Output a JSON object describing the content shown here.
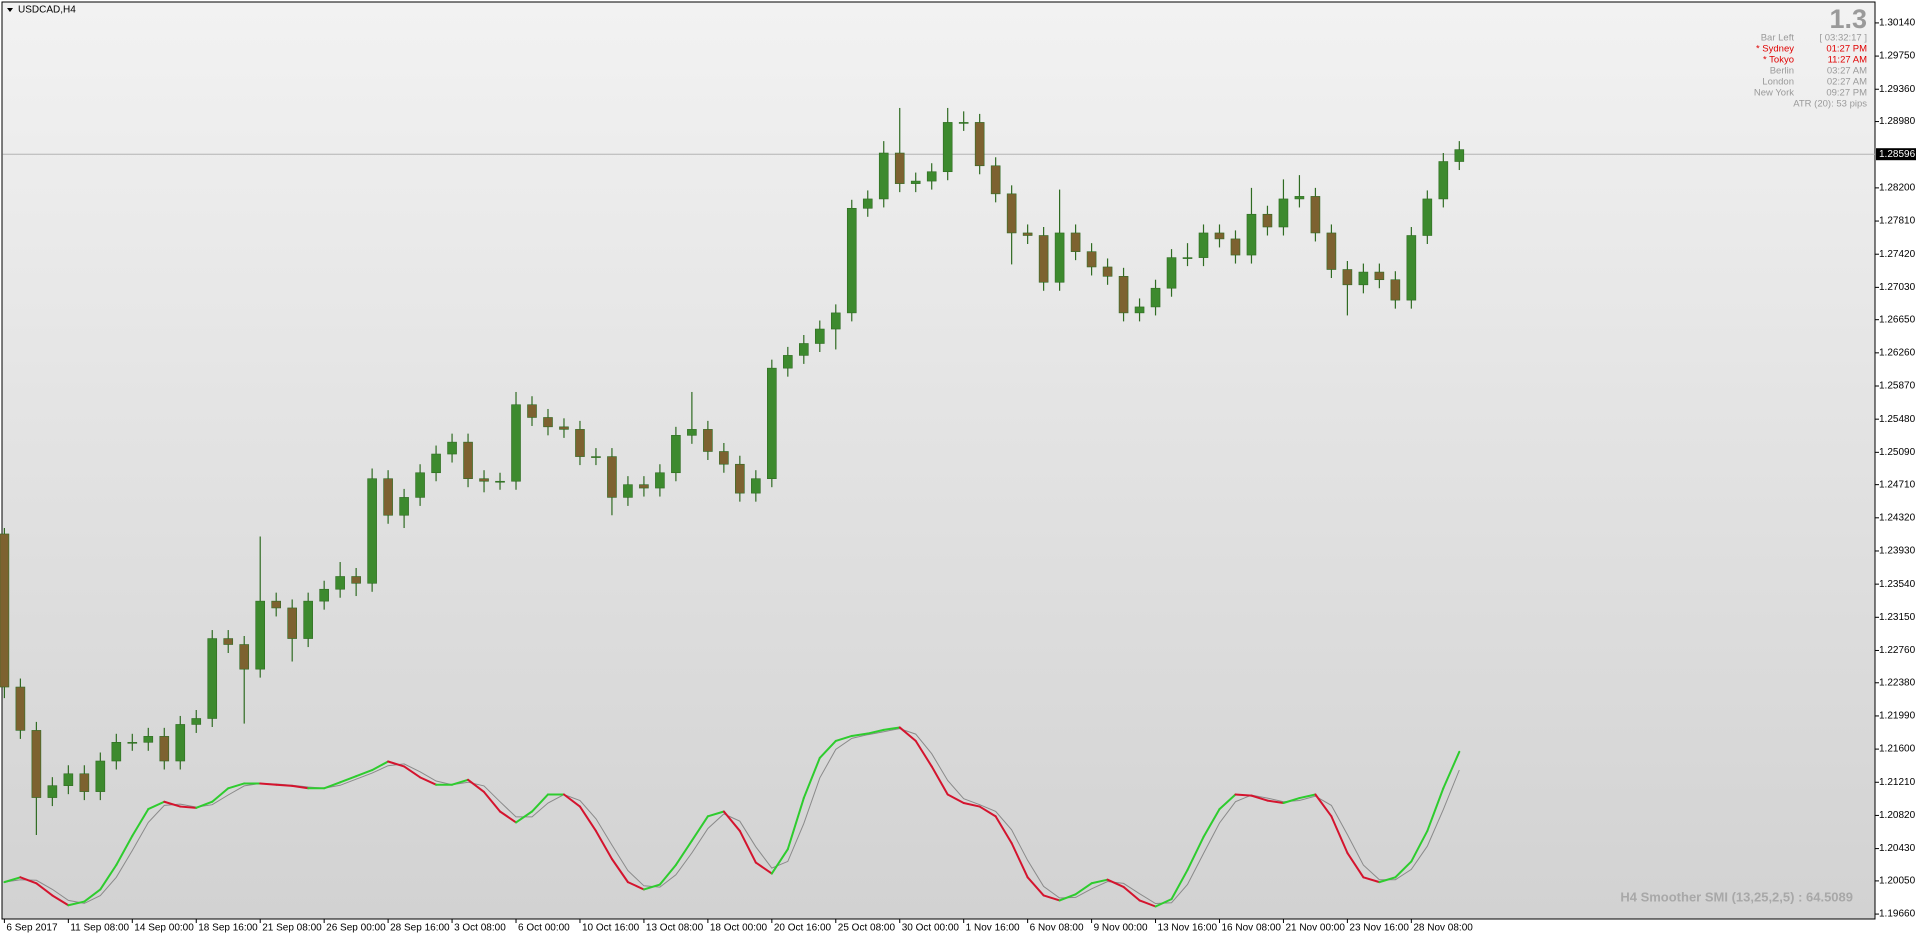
{
  "chart_data": {
    "type": "candlestick",
    "title": "USDCAD,H4",
    "x": [
      0,
      4,
      8,
      12,
      16,
      20,
      24,
      28,
      32,
      36,
      40,
      44,
      48,
      52,
      56,
      60,
      64,
      68,
      72,
      76,
      80,
      84,
      88,
      92,
      96,
      100,
      104,
      108,
      112,
      116,
      120,
      124,
      128,
      132,
      136,
      140,
      144,
      148,
      152,
      156,
      160,
      164,
      168,
      172,
      176,
      180,
      184,
      188,
      192,
      196,
      200,
      204,
      208,
      212,
      216,
      220,
      224,
      228,
      232,
      236,
      240,
      244,
      248,
      252,
      256,
      260,
      264,
      268,
      272,
      276,
      280,
      284,
      288,
      292,
      296,
      300,
      304,
      308,
      312,
      316,
      320,
      324,
      328,
      332,
      336,
      340,
      344,
      348,
      352,
      356,
      360,
      364
    ],
    "open": [
      1.2413,
      1.2233,
      1.2182,
      1.2103,
      1.2117,
      1.2131,
      1.211,
      1.2146,
      1.2168,
      1.2168,
      1.2175,
      1.2146,
      1.2189,
      1.2196,
      1.229,
      1.2283,
      1.2254,
      1.2334,
      1.2326,
      1.229,
      1.2334,
      1.2348,
      1.2363,
      1.2355,
      1.2478,
      1.2435,
      1.2456,
      1.2485,
      1.2507,
      1.2521,
      1.2478,
      1.2475,
      1.2475,
      1.2565,
      1.255,
      1.2539,
      1.2536,
      1.2504,
      1.2504,
      1.2456,
      1.2471,
      1.2467,
      1.2485,
      1.2529,
      1.2536,
      1.251,
      1.2495,
      1.2461,
      1.2478,
      1.2608,
      1.2623,
      1.2637,
      1.2654,
      1.2673,
      1.2796,
      1.2807,
      1.2861,
      1.2825,
      1.2828,
      1.2839,
      1.2897,
      1.2897,
      1.2846,
      1.2813,
      1.2767,
      1.2764,
      1.2709,
      1.2767,
      1.2745,
      1.2727,
      1.2716,
      1.2673,
      1.268,
      1.2702,
      1.2738,
      1.2738,
      1.2767,
      1.276,
      1.2741,
      1.2789,
      1.2774,
      1.2807,
      1.281,
      1.2767,
      1.2724,
      1.2706,
      1.2721,
      1.2712,
      1.2688,
      1.2764,
      1.2807,
      1.2851
    ],
    "high": [
      1.242,
      1.2243,
      1.2192,
      1.2127,
      1.2141,
      1.2141,
      1.2156,
      1.2178,
      1.2178,
      1.2185,
      1.2185,
      1.2199,
      1.2206,
      1.23,
      1.23,
      1.2293,
      1.241,
      1.2344,
      1.2336,
      1.2344,
      1.2358,
      1.238,
      1.2373,
      1.249,
      1.2488,
      1.2466,
      1.2495,
      1.2517,
      1.2531,
      1.2531,
      1.2488,
      1.2485,
      1.258,
      1.2575,
      1.256,
      1.2549,
      1.2546,
      1.2514,
      1.2514,
      1.2481,
      1.2481,
      1.2495,
      1.2539,
      1.258,
      1.2546,
      1.252,
      1.2505,
      1.2488,
      1.2618,
      1.2633,
      1.2647,
      1.2664,
      1.2683,
      1.2806,
      1.2817,
      1.2875,
      1.2914,
      1.2838,
      1.2849,
      1.2914,
      1.291,
      1.2907,
      1.2856,
      1.2823,
      1.2777,
      1.2774,
      1.2818,
      1.2777,
      1.2755,
      1.2737,
      1.2726,
      1.269,
      1.2712,
      1.2748,
      1.2755,
      1.2777,
      1.2777,
      1.277,
      1.282,
      1.2799,
      1.283,
      1.2835,
      1.282,
      1.2777,
      1.2734,
      1.2731,
      1.2731,
      1.2722,
      1.2774,
      1.2817,
      1.2861,
      1.2875
    ],
    "low": [
      1.222,
      1.2172,
      1.2059,
      1.2093,
      1.2107,
      1.21,
      1.21,
      1.2136,
      1.2158,
      1.2158,
      1.2136,
      1.2136,
      1.2179,
      1.2186,
      1.2273,
      1.219,
      1.2244,
      1.2316,
      1.2263,
      1.228,
      1.2324,
      1.2338,
      1.234,
      1.2345,
      1.2425,
      1.242,
      1.2446,
      1.2475,
      1.2497,
      1.2468,
      1.2462,
      1.2465,
      1.2465,
      1.254,
      1.2529,
      1.2526,
      1.2494,
      1.2494,
      1.2435,
      1.2446,
      1.2457,
      1.2457,
      1.2475,
      1.2519,
      1.25,
      1.2485,
      1.2451,
      1.2451,
      1.2468,
      1.2598,
      1.2613,
      1.2627,
      1.263,
      1.2663,
      1.2786,
      1.2797,
      1.2815,
      1.2815,
      1.2818,
      1.2829,
      1.2887,
      1.2836,
      1.2803,
      1.273,
      1.2754,
      1.2699,
      1.2699,
      1.2735,
      1.2717,
      1.2706,
      1.2663,
      1.2663,
      1.267,
      1.2692,
      1.2728,
      1.2728,
      1.275,
      1.2731,
      1.2731,
      1.2764,
      1.2764,
      1.2797,
      1.2757,
      1.2714,
      1.267,
      1.2696,
      1.2702,
      1.2678,
      1.2678,
      1.2754,
      1.2797,
      1.2841
    ],
    "close": [
      1.2233,
      1.2182,
      1.2103,
      1.2117,
      1.2131,
      1.211,
      1.2146,
      1.2168,
      1.2168,
      1.2175,
      1.2146,
      1.2189,
      1.2196,
      1.229,
      1.2283,
      1.2254,
      1.2334,
      1.2326,
      1.229,
      1.2334,
      1.2348,
      1.2363,
      1.2355,
      1.2478,
      1.2435,
      1.2456,
      1.2485,
      1.2507,
      1.2521,
      1.2478,
      1.2475,
      1.2475,
      1.2565,
      1.255,
      1.2539,
      1.2536,
      1.2504,
      1.2504,
      1.2456,
      1.2471,
      1.2467,
      1.2485,
      1.2529,
      1.2536,
      1.251,
      1.2495,
      1.2461,
      1.2478,
      1.2608,
      1.2623,
      1.2637,
      1.2654,
      1.2673,
      1.2796,
      1.2807,
      1.2861,
      1.2825,
      1.2828,
      1.2839,
      1.2897,
      1.2897,
      1.2846,
      1.2813,
      1.2767,
      1.2764,
      1.2709,
      1.2767,
      1.2745,
      1.2727,
      1.2716,
      1.2673,
      1.268,
      1.2702,
      1.2738,
      1.2738,
      1.2767,
      1.276,
      1.2741,
      1.2789,
      1.2774,
      1.2807,
      1.281,
      1.2767,
      1.2724,
      1.2706,
      1.2721,
      1.2712,
      1.2688,
      1.2764,
      1.2807,
      1.2851,
      1.2865
    ],
    "bull_color": "#3d8a2e",
    "bear_color": "#7d6230",
    "wick_color": "#2f6b22",
    "xlim": [
      -0.5,
      468
    ],
    "xticks": [
      {
        "value": 0,
        "label": "6 Sep 2017"
      },
      {
        "value": 16,
        "label": "11 Sep 08:00"
      },
      {
        "value": 32,
        "label": "14 Sep 00:00"
      },
      {
        "value": 48,
        "label": "18 Sep 16:00"
      },
      {
        "value": 64,
        "label": "21 Sep 08:00"
      },
      {
        "value": 80,
        "label": "26 Sep 00:00"
      },
      {
        "value": 96,
        "label": "28 Sep 16:00"
      },
      {
        "value": 112,
        "label": "3 Oct 08:00"
      },
      {
        "value": 128,
        "label": "6 Oct 00:00"
      },
      {
        "value": 144,
        "label": "10 Oct 16:00"
      },
      {
        "value": 160,
        "label": "13 Oct 08:00"
      },
      {
        "value": 176,
        "label": "18 Oct 00:00"
      },
      {
        "value": 192,
        "label": "20 Oct 16:00"
      },
      {
        "value": 208,
        "label": "25 Oct 08:00"
      },
      {
        "value": 224,
        "label": "30 Oct 00:00"
      },
      {
        "value": 240,
        "label": "1 Nov 16:00"
      },
      {
        "value": 256,
        "label": "6 Nov 08:00"
      },
      {
        "value": 272,
        "label": "9 Nov 00:00"
      },
      {
        "value": 288,
        "label": "13 Nov 16:00"
      },
      {
        "value": 304,
        "label": "16 Nov 08:00"
      },
      {
        "value": 320,
        "label": "21 Nov 00:00"
      },
      {
        "value": 336,
        "label": "23 Nov 16:00"
      },
      {
        "value": 352,
        "label": "28 Nov 08:00"
      }
    ],
    "ylim": [
      1.19602,
      1.30386
    ],
    "yticks": [
      {
        "value": 1.3014,
        "label": "1.30140"
      },
      {
        "value": 1.2975,
        "label": "1.29750"
      },
      {
        "value": 1.2936,
        "label": "1.29360"
      },
      {
        "value": 1.2898,
        "label": "1.28980"
      },
      {
        "value": 1.282,
        "label": "1.28200"
      },
      {
        "value": 1.2781,
        "label": "1.27810"
      },
      {
        "value": 1.2742,
        "label": "1.27420"
      },
      {
        "value": 1.2703,
        "label": "1.27030"
      },
      {
        "value": 1.2665,
        "label": "1.26650"
      },
      {
        "value": 1.2626,
        "label": "1.26260"
      },
      {
        "value": 1.2587,
        "label": "1.25870"
      },
      {
        "value": 1.2548,
        "label": "1.25480"
      },
      {
        "value": 1.2509,
        "label": "1.25090"
      },
      {
        "value": 1.2471,
        "label": "1.24710"
      },
      {
        "value": 1.2432,
        "label": "1.24320"
      },
      {
        "value": 1.2393,
        "label": "1.23930"
      },
      {
        "value": 1.2354,
        "label": "1.23540"
      },
      {
        "value": 1.2315,
        "label": "1.23150"
      },
      {
        "value": 1.2276,
        "label": "1.22760"
      },
      {
        "value": 1.2238,
        "label": "1.22380"
      },
      {
        "value": 1.2199,
        "label": "1.21990"
      },
      {
        "value": 1.216,
        "label": "1.21600"
      },
      {
        "value": 1.2121,
        "label": "1.21210"
      },
      {
        "value": 1.2082,
        "label": "1.20820"
      },
      {
        "value": 1.2043,
        "label": "1.20430"
      },
      {
        "value": 1.2005,
        "label": "1.20050"
      },
      {
        "value": 1.1966,
        "label": "1.19660"
      }
    ],
    "bid": {
      "value": 1.28596,
      "label": "1.28596"
    },
    "grid": false,
    "indicator": {
      "label": "H4 Smoother SMI (13,25,2,5) : 64.5089",
      "ylim": [
        -100,
        100
      ],
      "up_color": "#2ecc2e",
      "down_color": "#d4142e",
      "signal_color": "#8a8a8a",
      "values": [
        -48.8,
        -44.6,
        -49.8,
        -60.4,
        -68.9,
        -65.7,
        -55.2,
        -33.9,
        -8.6,
        14.7,
        21.1,
        16.9,
        15.8,
        21.1,
        32.8,
        37.0,
        37.0,
        35.9,
        34.9,
        32.8,
        32.8,
        38.0,
        43.3,
        48.6,
        56.1,
        51.8,
        42.3,
        35.9,
        35.9,
        40.2,
        29.6,
        12.6,
        3.1,
        12.6,
        27.4,
        27.4,
        16.9,
        -4.3,
        -28.7,
        -48.8,
        -55.2,
        -50.9,
        -33.9,
        -12.8,
        8.4,
        12.6,
        -4.3,
        -31.8,
        -41.4,
        -20.2,
        24.3,
        59.2,
        74.0,
        78.3,
        80.4,
        83.6,
        85.7,
        74.0,
        51.8,
        27.4,
        20.0,
        16.9,
        8.4,
        -14.9,
        -44.6,
        -60.4,
        -64.7,
        -59.4,
        -49.8,
        -46.7,
        -53.0,
        -64.7,
        -70.0,
        -63.6,
        -38.2,
        -9.6,
        14.7,
        27.4,
        26.4,
        22.1,
        20.0,
        24.3,
        27.4,
        8.4,
        -23.4,
        -44.6,
        -48.8,
        -44.6,
        -30.8,
        -4.3,
        32.8,
        64.5089
      ],
      "signal": [
        -48.8,
        -46.7,
        -47.2,
        -55.1,
        -64.7,
        -67.3,
        -60.5,
        -44.6,
        -21.3,
        3.1,
        17.9,
        19.0,
        16.4,
        18.5,
        27.0,
        34.9,
        37.0,
        36.5,
        35.4,
        33.9,
        32.8,
        35.4,
        40.7,
        46.0,
        52.4,
        54.0,
        47.1,
        39.1,
        35.9,
        38.1,
        34.9,
        21.1,
        7.9,
        7.9,
        20.0,
        27.4,
        22.2,
        6.3,
        -16.5,
        -38.8,
        -52.0,
        -53.1,
        -42.4,
        -23.4,
        -2.2,
        10.5,
        4.2,
        -18.1,
        -36.6,
        -30.8,
        2.1,
        41.8,
        66.6,
        76.2,
        79.4,
        82.0,
        84.7,
        79.9,
        62.9,
        39.6,
        23.7,
        18.5,
        12.7,
        -3.3,
        -29.8,
        -52.5,
        -62.6,
        -62.1,
        -54.6,
        -48.3,
        -49.9,
        -58.9,
        -67.4,
        -66.8,
        -50.9,
        -23.9,
        2.6,
        21.1,
        26.9,
        24.3,
        21.1,
        22.2,
        25.9,
        17.9,
        -7.5,
        -34.0,
        -46.7,
        -46.7,
        -37.7,
        -17.6,
        14.3,
        48.7
      ]
    }
  },
  "info_panel": {
    "spread": 1.3,
    "rows": [
      [
        "Bar Left",
        "[ 03:32:17 ]"
      ],
      [
        "* Sydney",
        "01:27 PM"
      ],
      [
        "* Tokyo",
        "11:27 AM"
      ],
      [
        "Berlin",
        "03:27 AM"
      ],
      [
        "London",
        "02:27 AM"
      ],
      [
        "New York",
        "09:27 PM"
      ]
    ],
    "highlight": [
      false,
      true,
      true,
      false,
      false,
      false
    ],
    "color": "#9a9a9a",
    "highlight_color": "#e00000",
    "footer": "ATR (20): 53 pips"
  }
}
